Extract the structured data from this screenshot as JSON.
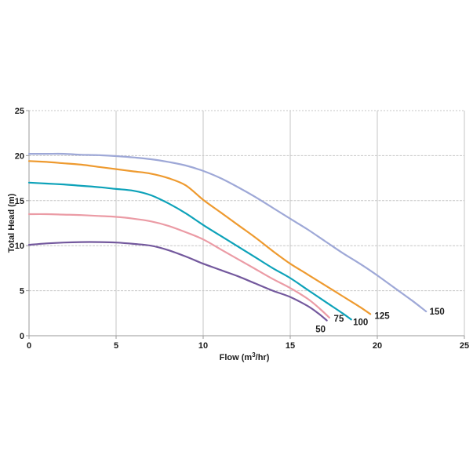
{
  "chart_data": {
    "type": "line",
    "title": "",
    "xlabel_parts": [
      "Flow  (m",
      "3",
      "/hr)"
    ],
    "ylabel": "Total Head (m)",
    "xlim": [
      0,
      25
    ],
    "ylim": [
      0,
      25
    ],
    "xticks": [
      0,
      5,
      10,
      15,
      20,
      25
    ],
    "yticks": [
      0,
      5,
      10,
      15,
      20,
      25
    ],
    "grid": true,
    "legend_position": "curve-end-labels",
    "axis_color": "#9a9a9a",
    "grid_color": "#c6c6c6",
    "text_color": "#1d1d1d",
    "series": [
      {
        "name": "50",
        "color": "#73589d",
        "label_offset": [
          -8,
          15
        ],
        "points": [
          [
            0,
            10.1
          ],
          [
            1,
            10.25
          ],
          [
            2,
            10.35
          ],
          [
            3,
            10.4
          ],
          [
            4,
            10.4
          ],
          [
            5,
            10.35
          ],
          [
            6,
            10.2
          ],
          [
            7,
            10.0
          ],
          [
            8,
            9.5
          ],
          [
            9,
            8.8
          ],
          [
            10,
            8.0
          ],
          [
            11,
            7.3
          ],
          [
            12,
            6.6
          ],
          [
            13,
            5.8
          ],
          [
            14,
            5.0
          ],
          [
            15,
            4.3
          ],
          [
            16,
            3.3
          ],
          [
            16.6,
            2.5
          ],
          [
            17.1,
            1.7
          ]
        ]
      },
      {
        "name": "75",
        "color": "#eb9ba5",
        "label_offset": [
          12,
          5
        ],
        "points": [
          [
            0,
            13.5
          ],
          [
            1,
            13.5
          ],
          [
            2,
            13.45
          ],
          [
            3,
            13.4
          ],
          [
            4,
            13.3
          ],
          [
            5,
            13.2
          ],
          [
            6,
            13.0
          ],
          [
            7,
            12.7
          ],
          [
            8,
            12.2
          ],
          [
            9,
            11.5
          ],
          [
            10,
            10.7
          ],
          [
            11,
            9.6
          ],
          [
            12,
            8.5
          ],
          [
            13,
            7.4
          ],
          [
            14,
            6.3
          ],
          [
            15,
            5.3
          ],
          [
            16,
            4.1
          ],
          [
            16.7,
            3.0
          ],
          [
            17.25,
            2.0
          ]
        ]
      },
      {
        "name": "100",
        "color": "#0da2b9",
        "label_offset": [
          12,
          7
        ],
        "points": [
          [
            0,
            17.0
          ],
          [
            1,
            16.9
          ],
          [
            2,
            16.8
          ],
          [
            3,
            16.65
          ],
          [
            4,
            16.5
          ],
          [
            5,
            16.3
          ],
          [
            6,
            16.1
          ],
          [
            7,
            15.6
          ],
          [
            8,
            14.7
          ],
          [
            9,
            13.6
          ],
          [
            10,
            12.3
          ],
          [
            11,
            11.1
          ],
          [
            12,
            9.9
          ],
          [
            13,
            8.7
          ],
          [
            14,
            7.5
          ],
          [
            15,
            6.4
          ],
          [
            16,
            5.1
          ],
          [
            17,
            3.8
          ],
          [
            18,
            2.5
          ],
          [
            18.5,
            1.8
          ]
        ]
      },
      {
        "name": "125",
        "color": "#ee9a2f",
        "label_offset": [
          15,
          6
        ],
        "points": [
          [
            0,
            19.4
          ],
          [
            1,
            19.3
          ],
          [
            2,
            19.15
          ],
          [
            3,
            19.0
          ],
          [
            4,
            18.75
          ],
          [
            5,
            18.5
          ],
          [
            6,
            18.25
          ],
          [
            7,
            18.0
          ],
          [
            8,
            17.5
          ],
          [
            9,
            16.7
          ],
          [
            10,
            15.1
          ],
          [
            11,
            13.7
          ],
          [
            12,
            12.3
          ],
          [
            13,
            10.9
          ],
          [
            14,
            9.4
          ],
          [
            15,
            8.0
          ],
          [
            16,
            6.8
          ],
          [
            17,
            5.6
          ],
          [
            18,
            4.4
          ],
          [
            19,
            3.2
          ],
          [
            19.6,
            2.4
          ]
        ]
      },
      {
        "name": "150",
        "color": "#9ea8d7",
        "label_offset": [
          14,
          4
        ],
        "points": [
          [
            0,
            20.2
          ],
          [
            1,
            20.2
          ],
          [
            2,
            20.2
          ],
          [
            3,
            20.1
          ],
          [
            4,
            20.05
          ],
          [
            5,
            19.95
          ],
          [
            6,
            19.8
          ],
          [
            7,
            19.6
          ],
          [
            8,
            19.3
          ],
          [
            9,
            18.9
          ],
          [
            10,
            18.3
          ],
          [
            11,
            17.5
          ],
          [
            12,
            16.5
          ],
          [
            13,
            15.4
          ],
          [
            14,
            14.2
          ],
          [
            15,
            13.0
          ],
          [
            16,
            11.8
          ],
          [
            17,
            10.5
          ],
          [
            18,
            9.2
          ],
          [
            19,
            8.0
          ],
          [
            20,
            6.7
          ],
          [
            21,
            5.3
          ],
          [
            22,
            3.9
          ],
          [
            22.8,
            2.7
          ]
        ]
      }
    ]
  }
}
